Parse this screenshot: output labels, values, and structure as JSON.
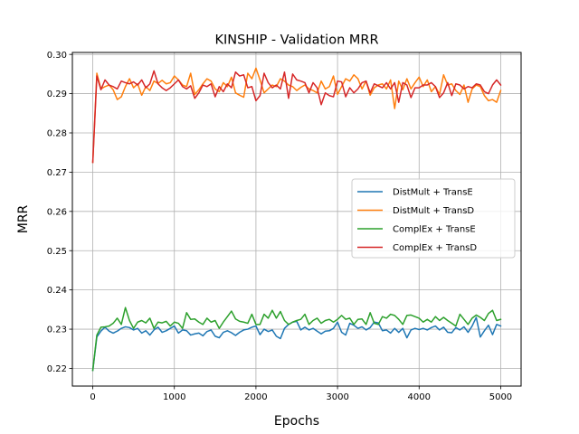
{
  "chart_data": {
    "type": "line",
    "title": "KINSHIP - Validation MRR",
    "xlabel": "Epochs",
    "ylabel": "MRR",
    "xlim": [
      -250,
      5250
    ],
    "ylim": [
      0.2155,
      0.3005
    ],
    "xticks": [
      0,
      1000,
      2000,
      3000,
      4000,
      5000
    ],
    "xtick_labels": [
      "0",
      "1000",
      "2000",
      "3000",
      "4000",
      "5000"
    ],
    "yticks": [
      0.22,
      0.23,
      0.24,
      0.25,
      0.26,
      0.27,
      0.28,
      0.29,
      0.3
    ],
    "ytick_labels": [
      "0.22",
      "0.23",
      "0.24",
      "0.25",
      "0.26",
      "0.27",
      "0.28",
      "0.29",
      "0.30"
    ],
    "grid": true,
    "legend_position": "center-right",
    "series": [
      {
        "name": "DistMult + TransE",
        "color": "#1f77b4",
        "x": [
          0,
          50,
          100,
          150,
          200,
          250,
          300,
          350,
          400,
          450,
          500,
          550,
          600,
          650,
          700,
          750,
          800,
          850,
          900,
          950,
          1000,
          1050,
          1100,
          1150,
          1200,
          1250,
          1300,
          1350,
          1400,
          1450,
          1500,
          1550,
          1600,
          1650,
          1700,
          1750,
          1800,
          1850,
          1900,
          1950,
          2000,
          2050,
          2100,
          2150,
          2200,
          2250,
          2300,
          2350,
          2400,
          2450,
          2500,
          2550,
          2600,
          2650,
          2700,
          2750,
          2800,
          2850,
          2900,
          2950,
          3000,
          3050,
          3100,
          3150,
          3200,
          3250,
          3300,
          3350,
          3400,
          3450,
          3500,
          3550,
          3600,
          3650,
          3700,
          3750,
          3800,
          3850,
          3900,
          3950,
          4000,
          4050,
          4100,
          4150,
          4200,
          4250,
          4300,
          4350,
          4400,
          4450,
          4500,
          4550,
          4600,
          4650,
          4700,
          4750,
          4800,
          4850,
          4900,
          4950,
          5000
        ],
        "y": [
          0.2195,
          0.228,
          0.2295,
          0.2305,
          0.2295,
          0.229,
          0.2295,
          0.2302,
          0.2306,
          0.2304,
          0.2298,
          0.2302,
          0.229,
          0.2296,
          0.2285,
          0.2298,
          0.2305,
          0.2292,
          0.2296,
          0.2302,
          0.2308,
          0.229,
          0.2298,
          0.2296,
          0.2285,
          0.2288,
          0.229,
          0.2283,
          0.2294,
          0.2298,
          0.2282,
          0.2278,
          0.2292,
          0.2296,
          0.2291,
          0.2284,
          0.2292,
          0.2298,
          0.23,
          0.2305,
          0.2308,
          0.2286,
          0.23,
          0.2294,
          0.2298,
          0.2282,
          0.2276,
          0.2302,
          0.2312,
          0.2318,
          0.232,
          0.2298,
          0.2305,
          0.2298,
          0.2302,
          0.2295,
          0.2288,
          0.2295,
          0.2296,
          0.2302,
          0.2318,
          0.2292,
          0.2285,
          0.2315,
          0.231,
          0.2302,
          0.2306,
          0.2298,
          0.2304,
          0.2318,
          0.2316,
          0.2296,
          0.2298,
          0.229,
          0.2302,
          0.2292,
          0.2302,
          0.2278,
          0.2298,
          0.2302,
          0.2299,
          0.2302,
          0.2298,
          0.2304,
          0.2308,
          0.2298,
          0.2305,
          0.2292,
          0.2291,
          0.2304,
          0.2298,
          0.2306,
          0.2292,
          0.2308,
          0.233,
          0.228,
          0.2296,
          0.231,
          0.2286,
          0.2312,
          0.2308
        ]
      },
      {
        "name": "DistMult + TransD",
        "color": "#ff7f0e",
        "x": [
          0,
          50,
          100,
          150,
          200,
          250,
          300,
          350,
          400,
          450,
          500,
          550,
          600,
          650,
          700,
          750,
          800,
          850,
          900,
          950,
          1000,
          1050,
          1100,
          1150,
          1200,
          1250,
          1300,
          1350,
          1400,
          1450,
          1500,
          1550,
          1600,
          1650,
          1700,
          1750,
          1800,
          1850,
          1900,
          1950,
          2000,
          2050,
          2100,
          2150,
          2200,
          2250,
          2300,
          2350,
          2400,
          2450,
          2500,
          2550,
          2600,
          2650,
          2700,
          2750,
          2800,
          2850,
          2900,
          2950,
          3000,
          3050,
          3100,
          3150,
          3200,
          3250,
          3300,
          3350,
          3400,
          3450,
          3500,
          3550,
          3600,
          3650,
          3700,
          3750,
          3800,
          3850,
          3900,
          3950,
          4000,
          4050,
          4100,
          4150,
          4200,
          4250,
          4300,
          4350,
          4400,
          4450,
          4500,
          4550,
          4600,
          4650,
          4700,
          4750,
          4800,
          4850,
          4900,
          4950,
          5000
        ],
        "y": [
          0.2725,
          0.2952,
          0.2912,
          0.2918,
          0.2922,
          0.291,
          0.2885,
          0.2892,
          0.2918,
          0.2938,
          0.2915,
          0.2925,
          0.2896,
          0.2918,
          0.2908,
          0.2932,
          0.2926,
          0.2934,
          0.2925,
          0.2928,
          0.2945,
          0.2935,
          0.2922,
          0.2918,
          0.2952,
          0.2898,
          0.291,
          0.2925,
          0.2938,
          0.2932,
          0.2912,
          0.2905,
          0.2928,
          0.2918,
          0.2942,
          0.2902,
          0.2896,
          0.2891,
          0.2952,
          0.2938,
          0.2965,
          0.2935,
          0.2902,
          0.2912,
          0.2922,
          0.2918,
          0.2938,
          0.2932,
          0.2922,
          0.2918,
          0.2908,
          0.2916,
          0.2922,
          0.2912,
          0.2908,
          0.2902,
          0.2932,
          0.2912,
          0.2918,
          0.2945,
          0.2898,
          0.2918,
          0.2938,
          0.2932,
          0.2948,
          0.2938,
          0.2912,
          0.2932,
          0.2896,
          0.2915,
          0.2922,
          0.2925,
          0.2912,
          0.2935,
          0.2862,
          0.2932,
          0.291,
          0.2938,
          0.2912,
          0.2928,
          0.2942,
          0.2918,
          0.2935,
          0.2905,
          0.2918,
          0.2898,
          0.2948,
          0.2922,
          0.2925,
          0.2908,
          0.2898,
          0.2922,
          0.2878,
          0.2912,
          0.2922,
          0.2918,
          0.2895,
          0.2882,
          0.2885,
          0.2878,
          0.2908
        ]
      },
      {
        "name": "ComplEx + TransE",
        "color": "#2ca02c",
        "x": [
          0,
          50,
          100,
          150,
          200,
          250,
          300,
          350,
          400,
          450,
          500,
          550,
          600,
          650,
          700,
          750,
          800,
          850,
          900,
          950,
          1000,
          1050,
          1100,
          1150,
          1200,
          1250,
          1300,
          1350,
          1400,
          1450,
          1500,
          1550,
          1600,
          1650,
          1700,
          1750,
          1800,
          1850,
          1900,
          1950,
          2000,
          2050,
          2100,
          2150,
          2200,
          2250,
          2300,
          2350,
          2400,
          2450,
          2500,
          2550,
          2600,
          2650,
          2700,
          2750,
          2800,
          2850,
          2900,
          2950,
          3000,
          3050,
          3100,
          3150,
          3200,
          3250,
          3300,
          3350,
          3400,
          3450,
          3500,
          3550,
          3600,
          3650,
          3700,
          3750,
          3800,
          3850,
          3900,
          3950,
          4000,
          4050,
          4100,
          4150,
          4200,
          4250,
          4300,
          4350,
          4400,
          4450,
          4500,
          4550,
          4600,
          4650,
          4700,
          4750,
          4800,
          4850,
          4900,
          4950,
          5000
        ],
        "y": [
          0.2195,
          0.2285,
          0.2305,
          0.2306,
          0.2308,
          0.2315,
          0.2328,
          0.2312,
          0.2355,
          0.2322,
          0.2302,
          0.2318,
          0.2322,
          0.2316,
          0.2328,
          0.2302,
          0.2318,
          0.2316,
          0.232,
          0.2308,
          0.2318,
          0.2315,
          0.2302,
          0.2342,
          0.2325,
          0.2326,
          0.2318,
          0.2312,
          0.2328,
          0.2318,
          0.2322,
          0.2302,
          0.2318,
          0.2332,
          0.2346,
          0.2326,
          0.232,
          0.2318,
          0.2315,
          0.2338,
          0.2312,
          0.2312,
          0.2338,
          0.2328,
          0.2348,
          0.2328,
          0.2345,
          0.2322,
          0.2312,
          0.2318,
          0.2322,
          0.2325,
          0.2338,
          0.2312,
          0.2322,
          0.2328,
          0.2315,
          0.2322,
          0.2325,
          0.2318,
          0.2325,
          0.2335,
          0.2325,
          0.2328,
          0.2312,
          0.2325,
          0.2326,
          0.2312,
          0.2342,
          0.2315,
          0.2312,
          0.2332,
          0.2328,
          0.2338,
          0.2335,
          0.2325,
          0.2312,
          0.2335,
          0.2336,
          0.2332,
          0.2328,
          0.2318,
          0.2325,
          0.2318,
          0.2332,
          0.2322,
          0.233,
          0.2322,
          0.2315,
          0.2308,
          0.2338,
          0.2325,
          0.2312,
          0.2328,
          0.2336,
          0.233,
          0.2322,
          0.234,
          0.2348,
          0.2322,
          0.2325
        ]
      },
      {
        "name": "ComplEx + TransD",
        "color": "#d62728",
        "x": [
          0,
          50,
          100,
          150,
          200,
          250,
          300,
          350,
          400,
          450,
          500,
          550,
          600,
          650,
          700,
          750,
          800,
          850,
          900,
          950,
          1000,
          1050,
          1100,
          1150,
          1200,
          1250,
          1300,
          1350,
          1400,
          1450,
          1500,
          1550,
          1600,
          1650,
          1700,
          1750,
          1800,
          1850,
          1900,
          1950,
          2000,
          2050,
          2100,
          2150,
          2200,
          2250,
          2300,
          2350,
          2400,
          2450,
          2500,
          2550,
          2600,
          2650,
          2700,
          2750,
          2800,
          2850,
          2900,
          2950,
          3000,
          3050,
          3100,
          3150,
          3200,
          3250,
          3300,
          3350,
          3400,
          3450,
          3500,
          3550,
          3600,
          3650,
          3700,
          3750,
          3800,
          3850,
          3900,
          3950,
          4000,
          4050,
          4100,
          4150,
          4200,
          4250,
          4300,
          4350,
          4400,
          4450,
          4500,
          4550,
          4600,
          4650,
          4700,
          4750,
          4800,
          4850,
          4900,
          4950,
          5000
        ],
        "y": [
          0.2725,
          0.2945,
          0.291,
          0.2935,
          0.2922,
          0.2918,
          0.2912,
          0.2932,
          0.2928,
          0.2925,
          0.293,
          0.2922,
          0.2935,
          0.2915,
          0.2925,
          0.2958,
          0.2925,
          0.2915,
          0.2908,
          0.2915,
          0.2925,
          0.2935,
          0.2918,
          0.2912,
          0.292,
          0.2888,
          0.2902,
          0.2922,
          0.2918,
          0.2925,
          0.2892,
          0.2918,
          0.2905,
          0.2925,
          0.2915,
          0.2955,
          0.2945,
          0.2948,
          0.2915,
          0.2918,
          0.2882,
          0.2895,
          0.2952,
          0.2928,
          0.2915,
          0.2922,
          0.2912,
          0.2955,
          0.2888,
          0.295,
          0.2935,
          0.2932,
          0.2928,
          0.2902,
          0.2928,
          0.2915,
          0.2872,
          0.2902,
          0.2895,
          0.2892,
          0.2932,
          0.293,
          0.2892,
          0.2915,
          0.2902,
          0.2912,
          0.2928,
          0.2932,
          0.2902,
          0.2925,
          0.292,
          0.2915,
          0.2928,
          0.2912,
          0.2928,
          0.2878,
          0.2928,
          0.2922,
          0.289,
          0.2915,
          0.2915,
          0.2922,
          0.2922,
          0.2928,
          0.2918,
          0.289,
          0.2902,
          0.2928,
          0.2895,
          0.2925,
          0.2922,
          0.2912,
          0.2918,
          0.2915,
          0.2925,
          0.2922,
          0.2905,
          0.29,
          0.2922,
          0.2935,
          0.2922
        ]
      }
    ]
  }
}
